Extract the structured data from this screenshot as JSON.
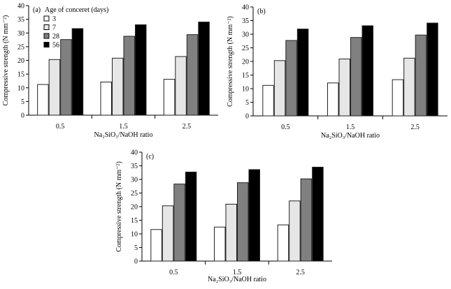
{
  "chart_data": [
    {
      "type": "bar",
      "panel_label": "(a)",
      "xlabel": "Na₂SiO₃/NaOH ratio",
      "ylabel": "Compressive strength (N mm⁻²)",
      "categories": [
        "0.5",
        "1.5",
        "2.5"
      ],
      "ylim": [
        0,
        40
      ],
      "yticks": [
        "0",
        "5",
        "10",
        "15",
        "20",
        "25",
        "30",
        "35",
        "40"
      ],
      "legend": {
        "title": "Age of conceret (days)",
        "placement": "top-left"
      },
      "series": [
        {
          "name": "3",
          "color": "#ffffff",
          "values": [
            11.2,
            12.1,
            13.1
          ]
        },
        {
          "name": "7",
          "color": "#e6e6e6",
          "values": [
            20.3,
            20.8,
            21.4
          ]
        },
        {
          "name": "28",
          "color": "#808080",
          "values": [
            27.6,
            28.8,
            29.4
          ]
        },
        {
          "name": "56",
          "color": "#000000",
          "values": [
            31.6,
            33.0,
            34.0
          ]
        }
      ]
    },
    {
      "type": "bar",
      "panel_label": "(b)",
      "xlabel": "Na₂SiO₃/NaOH ratio",
      "ylabel": "Compressive strength (N mm⁻²)",
      "categories": [
        "0.5",
        "1.5",
        "2.5"
      ],
      "ylim": [
        0,
        40
      ],
      "yticks": [
        "0",
        "5",
        "10",
        "15",
        "20",
        "25",
        "30",
        "35",
        "40"
      ],
      "series": [
        {
          "color": "#ffffff",
          "values": [
            11.2,
            12.1,
            13.3
          ]
        },
        {
          "color": "#e6e6e6",
          "values": [
            20.3,
            20.9,
            21.2
          ]
        },
        {
          "color": "#808080",
          "values": [
            27.7,
            28.8,
            29.7
          ]
        },
        {
          "color": "#000000",
          "values": [
            31.9,
            33.1,
            34.1
          ]
        }
      ]
    },
    {
      "type": "bar",
      "panel_label": "(c)",
      "xlabel": "Na₂SiO₃/NaOH ratio",
      "ylabel": "Compressive strength (N mm⁻²)",
      "categories": [
        "0.5",
        "1.5",
        "2.5"
      ],
      "ylim": [
        0,
        40
      ],
      "yticks": [
        "0",
        "5",
        "10",
        "15",
        "20",
        "25",
        "30",
        "35",
        "40"
      ],
      "series": [
        {
          "color": "#ffffff",
          "values": [
            11.6,
            12.5,
            13.3
          ]
        },
        {
          "color": "#e6e6e6",
          "values": [
            20.3,
            20.9,
            22.1
          ]
        },
        {
          "color": "#808080",
          "values": [
            28.3,
            28.8,
            30.2
          ]
        },
        {
          "color": "#000000",
          "values": [
            32.7,
            33.6,
            34.5
          ]
        }
      ]
    }
  ]
}
